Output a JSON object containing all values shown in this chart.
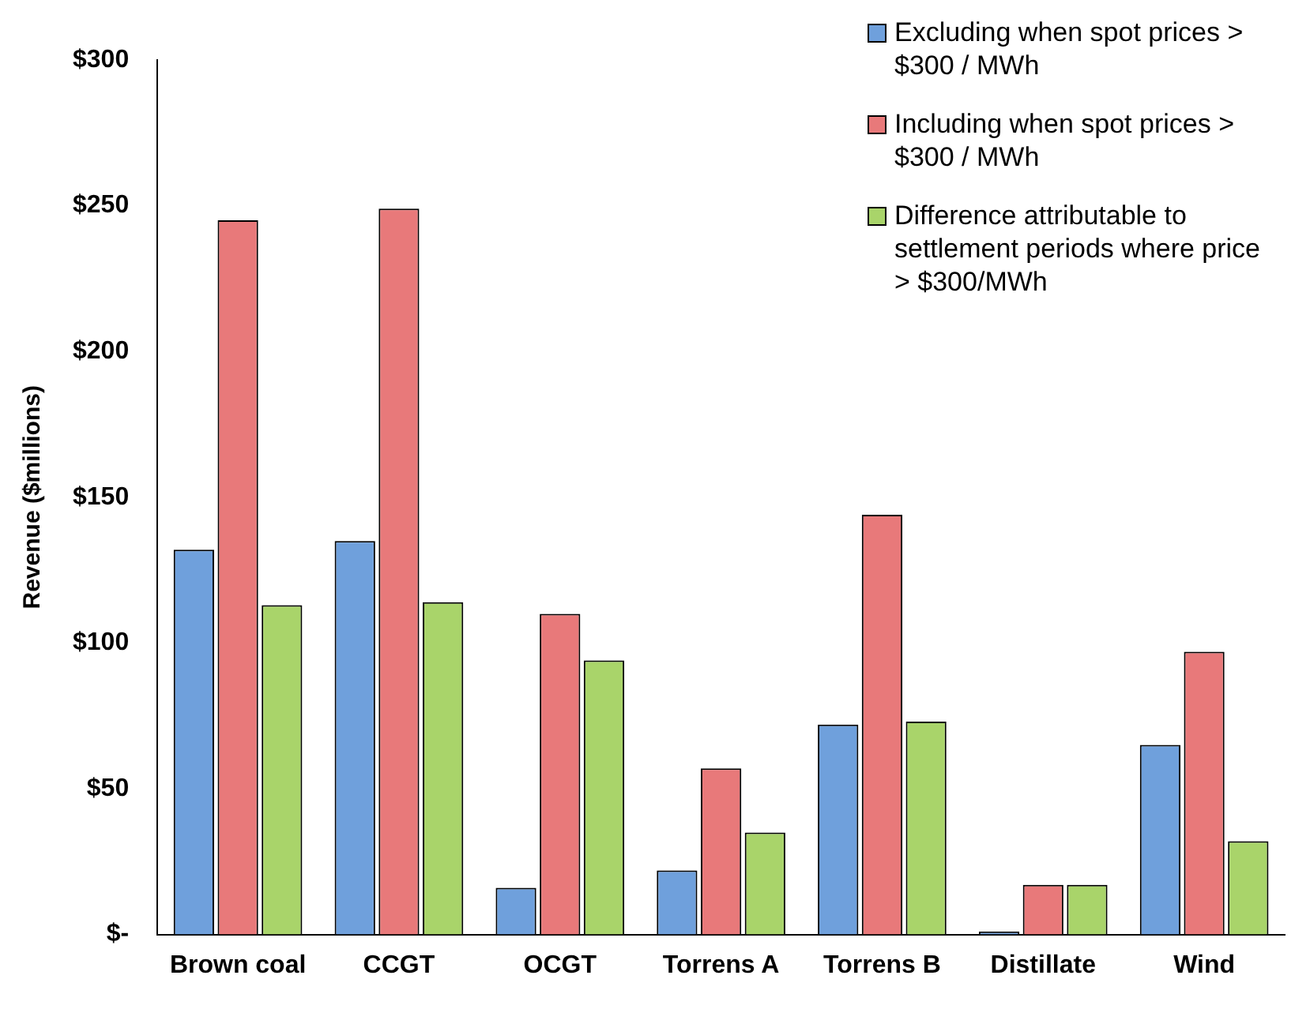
{
  "chart_data": {
    "type": "bar",
    "ylabel": "Revenue ($millions)",
    "categories": [
      "Brown coal",
      "CCGT",
      "OCGT",
      "Torrens A",
      "Torrens B",
      "Distillate",
      "Wind"
    ],
    "series": [
      {
        "name": "Excluding when spot prices > $300 / MWh",
        "color": "#6fa0dc",
        "values": [
          132,
          135,
          16,
          22,
          72,
          1,
          65
        ]
      },
      {
        "name": "Including when spot prices > $300 / MWh",
        "color": "#e8797a",
        "values": [
          245,
          249,
          110,
          57,
          144,
          17,
          97
        ]
      },
      {
        "name": "Difference attributable to settlement periods where price > $300/MWh",
        "color": "#a9d46a",
        "values": [
          113,
          114,
          94,
          35,
          73,
          17,
          32
        ]
      }
    ],
    "ylim": [
      0,
      300
    ],
    "yticks": [
      {
        "value": 0,
        "label": "$-"
      },
      {
        "value": 50,
        "label": "$50"
      },
      {
        "value": 100,
        "label": "$100"
      },
      {
        "value": 150,
        "label": "$150"
      },
      {
        "value": 200,
        "label": "$200"
      },
      {
        "value": 250,
        "label": "$250"
      },
      {
        "value": 300,
        "label": "$300"
      }
    ],
    "grid": false,
    "legend": "top right"
  }
}
